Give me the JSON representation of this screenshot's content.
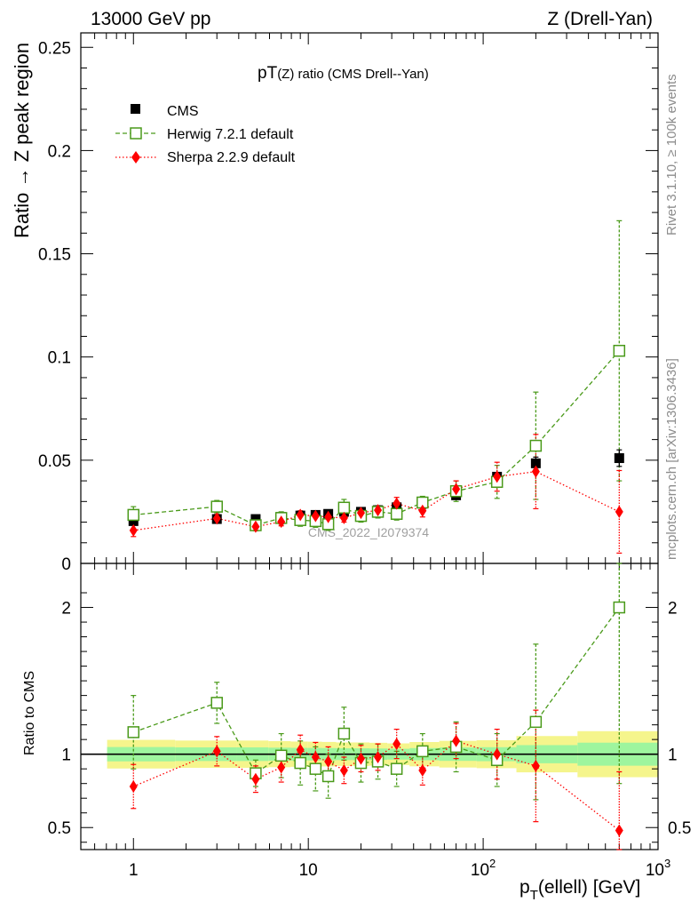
{
  "header": {
    "left": "13000 GeV pp",
    "right": "Z (Drell-Yan)"
  },
  "side_labels": {
    "rivet": "Rivet 3.1.10, ≥ 100k events",
    "mcplots": "mcplots.cern.ch [arXiv:1306.3436]"
  },
  "watermark": "CMS_2022_I2079374",
  "colors": {
    "cms": "#000000",
    "herwig": "#4a9a1a",
    "sherpa": "#ff0000",
    "band_inner": "#9ef59e",
    "band_outer": "#f5f58c"
  },
  "chart_data": [
    {
      "type": "scatter",
      "title": "pT(Z) ratio (CMS Drell--Yan)",
      "title_main": "pT",
      "title_sub": "(Z) ratio (CMS Drell--Yan)",
      "ylabel": "Ratio → Z peak region",
      "xlim": [
        0.5,
        1000
      ],
      "ylim": [
        0,
        0.257
      ],
      "xscale": "log",
      "yticks": [
        "0",
        "0.05",
        "0.1",
        "0.15",
        "0.2",
        "0.25"
      ],
      "legend_position": "top-left",
      "x": [
        1,
        3,
        5,
        7,
        9,
        11,
        13,
        16,
        20,
        25,
        32,
        45,
        70,
        120,
        200,
        600
      ],
      "series": [
        {
          "name": "CMS",
          "values": [
            0.0205,
            0.0215,
            0.0215,
            0.0225,
            0.0232,
            0.0235,
            0.024,
            0.025,
            0.025,
            0.0258,
            0.0272,
            0.029,
            0.033,
            0.042,
            0.0485,
            0.051
          ],
          "errors": [
            0.001,
            0.001,
            0.001,
            0.001,
            0.001,
            0.001,
            0.001,
            0.001,
            0.001,
            0.001,
            0.001,
            0.0012,
            0.0015,
            0.002,
            0.003,
            0.004
          ]
        },
        {
          "name": "Herwig 7.2.1 default",
          "values": [
            0.0235,
            0.0275,
            0.0185,
            0.022,
            0.021,
            0.0205,
            0.019,
            0.027,
            0.023,
            0.025,
            0.024,
            0.0295,
            0.035,
            0.0395,
            0.057,
            0.103
          ],
          "errors": [
            0.004,
            0.003,
            0.002,
            0.003,
            0.003,
            0.003,
            0.003,
            0.004,
            0.003,
            0.003,
            0.003,
            0.003,
            0.005,
            0.008,
            0.026,
            0.063
          ]
        },
        {
          "name": "Sherpa 2.2.9 default",
          "values": [
            0.016,
            0.0218,
            0.0178,
            0.0202,
            0.0235,
            0.023,
            0.0225,
            0.022,
            0.0245,
            0.0258,
            0.029,
            0.0255,
            0.036,
            0.042,
            0.0445,
            0.025
          ],
          "errors": [
            0.003,
            0.002,
            0.002,
            0.002,
            0.002,
            0.002,
            0.002,
            0.002,
            0.002,
            0.002,
            0.003,
            0.003,
            0.004,
            0.007,
            0.018,
            0.02
          ]
        }
      ]
    },
    {
      "type": "scatter",
      "ylabel": "Ratio to CMS",
      "xlabel_main": "p",
      "xlabel_sub": "T",
      "xlabel_rest": "(ellell) [GeV]",
      "xlim": [
        0.5,
        1000
      ],
      "ylim": [
        0.35,
        2.3
      ],
      "xscale": "log",
      "xticks": [
        {
          "value": 1,
          "base": "1",
          "exp": ""
        },
        {
          "value": 10,
          "base": "10",
          "exp": ""
        },
        {
          "value": 100,
          "base": "10",
          "exp": "2"
        },
        {
          "value": 1000,
          "base": "10",
          "exp": "3"
        }
      ],
      "yticks": [
        "0.5",
        "1",
        "2"
      ],
      "reference": 1,
      "x": [
        1,
        3,
        5,
        7,
        9,
        11,
        13,
        16,
        20,
        25,
        32,
        45,
        70,
        120,
        200,
        600
      ],
      "series": [
        {
          "name": "Herwig 7.2.1 default",
          "values": [
            1.15,
            1.35,
            0.87,
            0.99,
            0.94,
            0.9,
            0.85,
            1.14,
            0.94,
            0.95,
            0.9,
            1.02,
            1.05,
            0.96,
            1.22,
            2.0
          ],
          "errors": [
            0.25,
            0.14,
            0.09,
            0.15,
            0.15,
            0.15,
            0.15,
            0.18,
            0.13,
            0.12,
            0.12,
            0.12,
            0.17,
            0.18,
            0.53,
            1.2
          ]
        },
        {
          "name": "Sherpa 2.2.9 default",
          "values": [
            0.78,
            1.02,
            0.83,
            0.91,
            1.03,
            0.98,
            0.95,
            0.89,
            0.97,
            0.98,
            1.07,
            0.89,
            1.09,
            1.0,
            0.92,
            0.48
          ],
          "errors": [
            0.15,
            0.1,
            0.09,
            0.1,
            0.1,
            0.1,
            0.1,
            0.09,
            0.09,
            0.09,
            0.1,
            0.1,
            0.12,
            0.17,
            0.38,
            0.4
          ]
        }
      ]
    }
  ]
}
